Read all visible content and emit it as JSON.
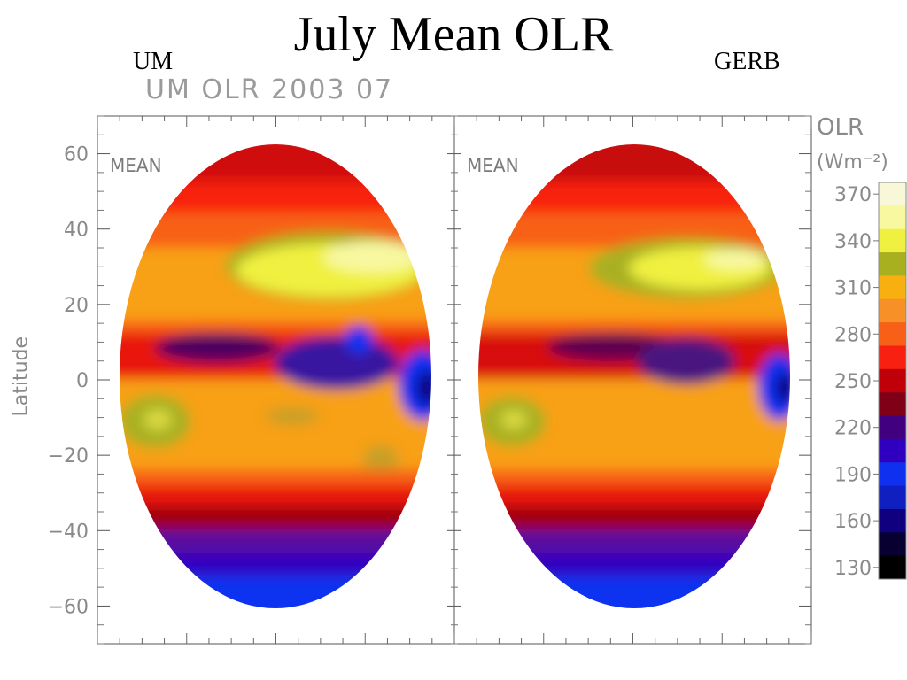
{
  "slide": {
    "title": "July Mean OLR",
    "left_label": "UM",
    "right_label": "GERB"
  },
  "chart_data": {
    "type": "heatmap",
    "title": "UM OLR 2003 07",
    "ylabel": "Latitude",
    "ylim": [
      -70,
      70
    ],
    "y_ticks": [
      60,
      40,
      20,
      0,
      -20,
      -40,
      -60
    ],
    "panels": [
      {
        "name": "UM",
        "annotation": "MEAN"
      },
      {
        "name": "GERB",
        "annotation": "MEAN"
      }
    ],
    "colorbar": {
      "title": "OLR",
      "units": "(Wm⁻²)",
      "tick_labels": [
        "370",
        "340",
        "310",
        "280",
        "250",
        "220",
        "190",
        "160",
        "130"
      ],
      "levels": [
        370,
        355,
        340,
        325,
        310,
        295,
        280,
        265,
        250,
        235,
        220,
        205,
        190,
        175,
        160,
        145,
        130
      ],
      "colors": [
        "#f8f8d8",
        "#f8f8a0",
        "#f0f040",
        "#a8b020",
        "#f8b010",
        "#f89028",
        "#f86018",
        "#f82010",
        "#c00008",
        "#800018",
        "#400080",
        "#3000c0",
        "#1030f0",
        "#1020c0",
        "#100080",
        "#080030",
        "#000000"
      ]
    }
  }
}
